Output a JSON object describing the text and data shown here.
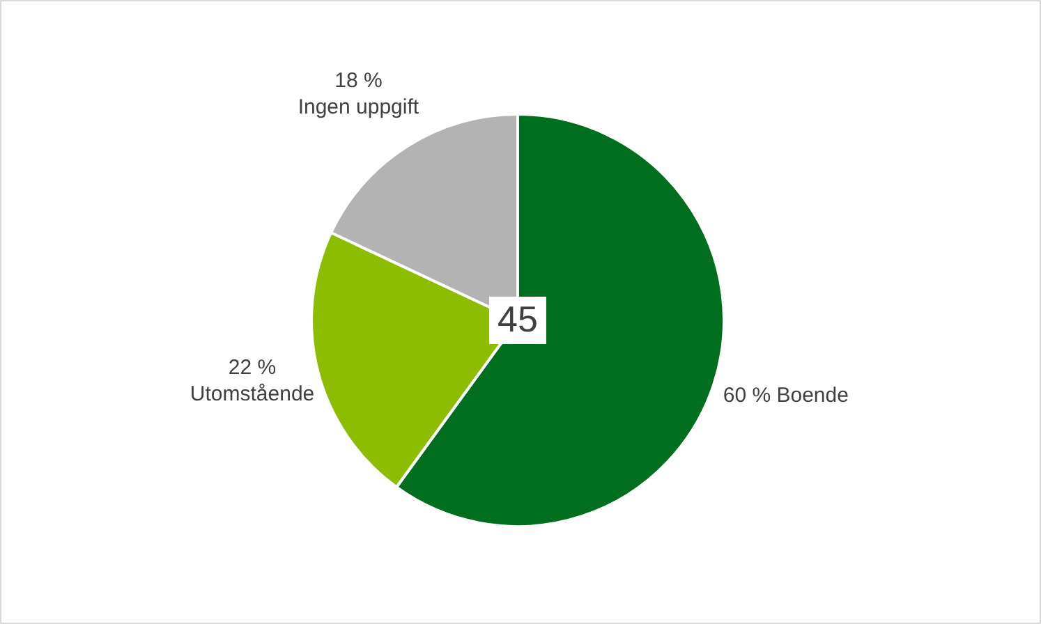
{
  "chart_data": {
    "type": "pie",
    "categories": [
      "Boende",
      "Utomstående",
      "Ingen uppgift"
    ],
    "values": [
      60,
      22,
      18
    ],
    "value_labels": [
      "60 %",
      "22 %",
      "18 %"
    ],
    "colors": [
      "#006e1f",
      "#8cbd00",
      "#b3b3b3"
    ],
    "annotations": [
      "45"
    ],
    "legend": false
  }
}
